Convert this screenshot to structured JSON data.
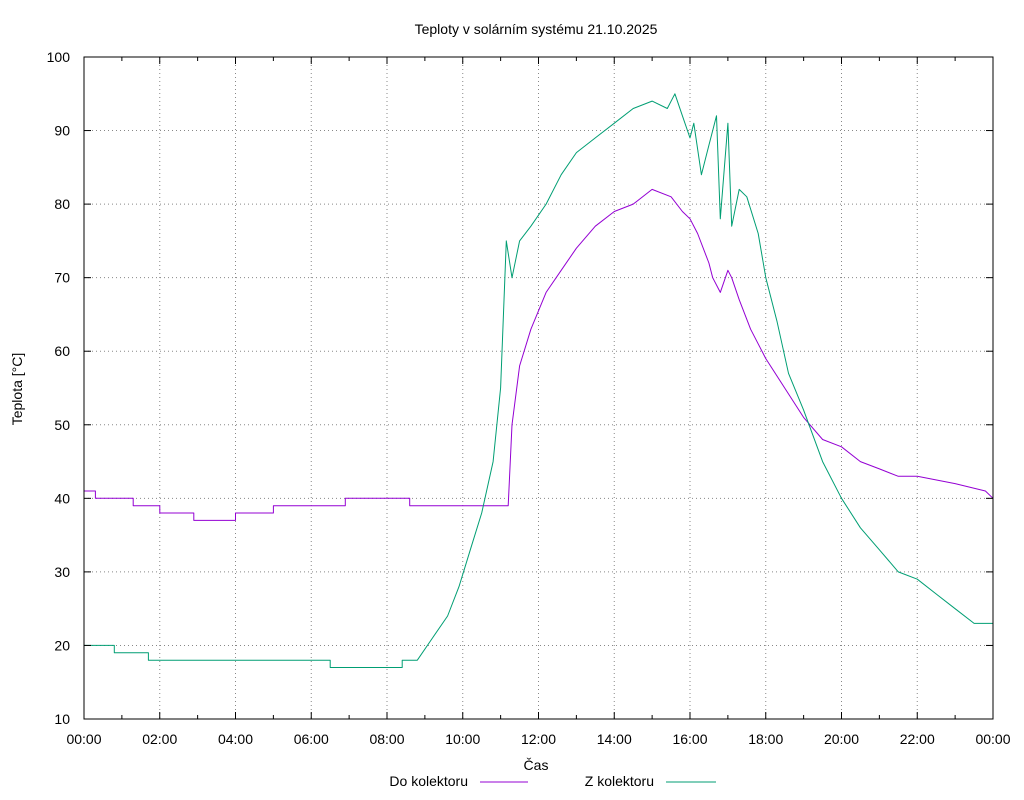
{
  "chart_data": {
    "type": "line",
    "title": "Teploty v solárním systému 21.10.2025",
    "xlabel": "Čas",
    "ylabel": "Teplota [°C]",
    "xlim": [
      0,
      24
    ],
    "ylim": [
      10,
      100
    ],
    "grid": true,
    "legend_position": "bottom-center",
    "x_tick_labels": [
      "00:00",
      "02:00",
      "04:00",
      "06:00",
      "08:00",
      "10:00",
      "12:00",
      "14:00",
      "16:00",
      "18:00",
      "20:00",
      "22:00",
      "00:00"
    ],
    "y_tick_labels": [
      "10",
      "20",
      "30",
      "40",
      "50",
      "60",
      "70",
      "80",
      "90",
      "100"
    ],
    "series": [
      {
        "name": "Do kolektoru",
        "color": "#9400d3",
        "x": [
          0,
          0.3,
          0.3,
          1.3,
          1.3,
          2.0,
          2.0,
          2.9,
          2.9,
          4.0,
          4.0,
          5.0,
          5.0,
          6.9,
          6.9,
          8.6,
          8.6,
          11.2,
          11.3,
          11.5,
          11.8,
          12.2,
          12.6,
          13.0,
          13.5,
          14.0,
          14.5,
          15.0,
          15.5,
          15.8,
          16.0,
          16.2,
          16.5,
          16.6,
          16.8,
          17.0,
          17.1,
          17.3,
          17.6,
          18.0,
          18.5,
          19.0,
          19.5,
          20.0,
          20.5,
          21.0,
          21.5,
          22.0,
          23.0,
          23.8,
          24.0
        ],
        "y": [
          41,
          41,
          40,
          40,
          39,
          39,
          38,
          38,
          37,
          37,
          38,
          38,
          39,
          39,
          40,
          40,
          39,
          39,
          50,
          58,
          63,
          68,
          71,
          74,
          77,
          79,
          80,
          82,
          81,
          79,
          78,
          76,
          72,
          70,
          68,
          71,
          70,
          67,
          63,
          59,
          55,
          51,
          48,
          47,
          45,
          44,
          43,
          43,
          42,
          41,
          40
        ]
      },
      {
        "name": "Z kolektoru",
        "color": "#009e73",
        "x": [
          0,
          0.8,
          0.8,
          1.7,
          1.7,
          6.5,
          6.5,
          8.4,
          8.4,
          8.8,
          9.2,
          9.6,
          9.9,
          10.2,
          10.5,
          10.8,
          11.0,
          11.15,
          11.3,
          11.5,
          11.8,
          12.2,
          12.6,
          13.0,
          13.5,
          14.0,
          14.5,
          15.0,
          15.4,
          15.6,
          15.8,
          16.0,
          16.1,
          16.3,
          16.5,
          16.7,
          16.8,
          17.0,
          17.1,
          17.3,
          17.5,
          17.8,
          18.0,
          18.3,
          18.6,
          19.0,
          19.5,
          20.0,
          20.5,
          21.0,
          21.5,
          22.0,
          22.5,
          23.0,
          23.5,
          24.0
        ],
        "y": [
          20,
          20,
          19,
          19,
          18,
          18,
          17,
          17,
          18,
          18,
          21,
          24,
          28,
          33,
          38,
          45,
          55,
          75,
          70,
          75,
          77,
          80,
          84,
          87,
          89,
          91,
          93,
          94,
          93,
          95,
          92,
          89,
          91,
          84,
          88,
          92,
          78,
          91,
          77,
          82,
          81,
          76,
          70,
          64,
          57,
          52,
          45,
          40,
          36,
          33,
          30,
          29,
          27,
          25,
          23,
          23
        ]
      }
    ]
  }
}
